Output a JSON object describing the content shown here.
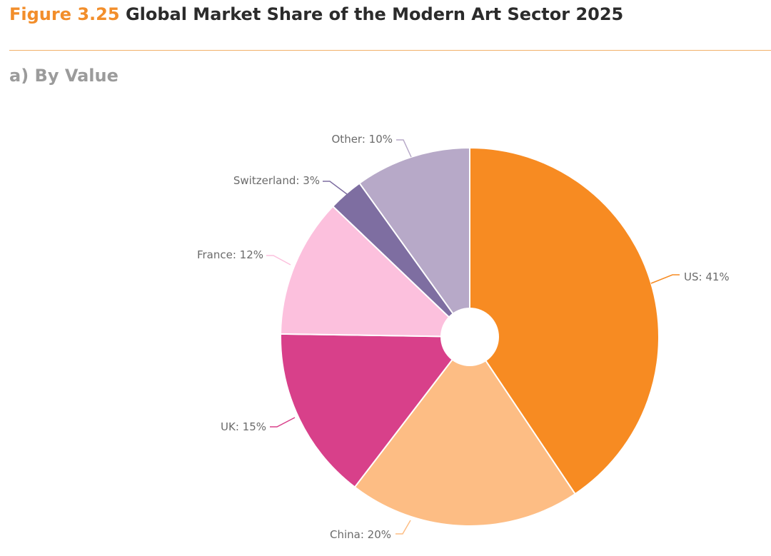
{
  "figure": {
    "number": "Figure 3.25",
    "title": "Global Market Share of the Modern Art Sector 2025",
    "subtitle": "a) By Value"
  },
  "colors": {
    "accent": "#f28e2b",
    "rule": "#f2b06a",
    "title": "#2b2b2b",
    "subtitle": "#9b9b9b",
    "label": "#6b6b6b"
  },
  "chart_data": {
    "type": "pie",
    "style": "donut-with-small-hole",
    "legend": "none",
    "title": "Global Market Share of the Modern Art Sector 2025",
    "subtitle": "a) By Value",
    "unit": "%",
    "slices": [
      {
        "name": "US",
        "value": 41,
        "label": "US: 41%",
        "color": "#f78b22"
      },
      {
        "name": "China",
        "value": 20,
        "label": "China: 20%",
        "color": "#fdbd84"
      },
      {
        "name": "UK",
        "value": 15,
        "label": "UK: 15%",
        "color": "#d8408a"
      },
      {
        "name": "France",
        "value": 12,
        "label": "France: 12%",
        "color": "#fcc0dd"
      },
      {
        "name": "Switzerland",
        "value": 3,
        "label": "Switzerland: 3%",
        "color": "#7e6ea1"
      },
      {
        "name": "Other",
        "value": 10,
        "label": "Other: 10%",
        "color": "#b7a9c8"
      }
    ]
  }
}
